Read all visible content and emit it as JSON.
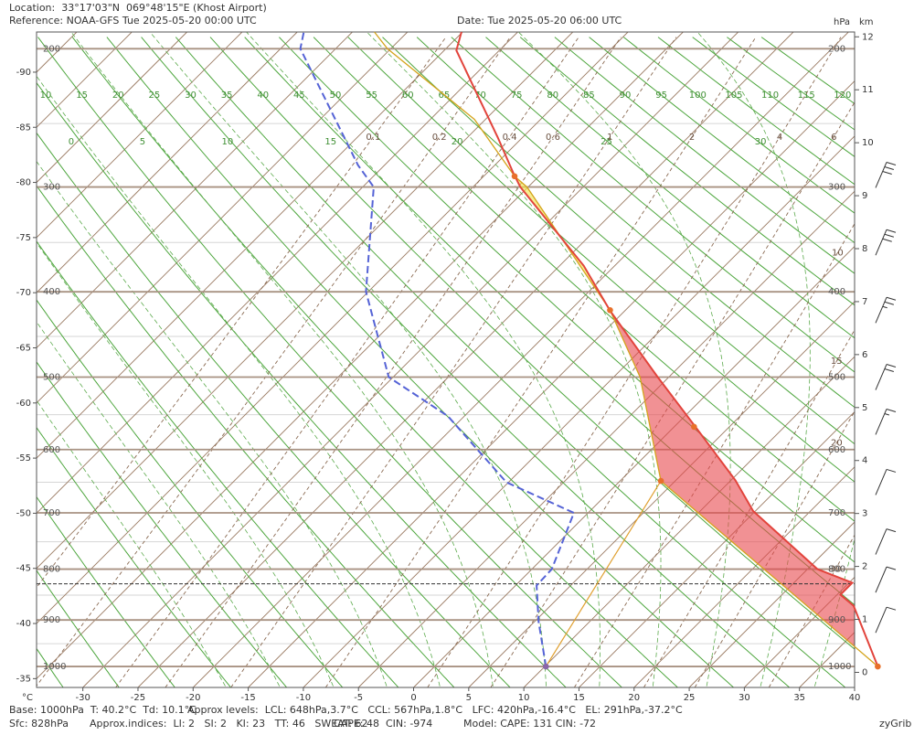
{
  "chart_data": {
    "type": "skewt",
    "location": "Location:  33°17'03\"N  069°48'15\"E (Khost Airport)",
    "reference": "Reference: NOAA-GFS Tue 2025-05-20 00:00 UTC",
    "date": "Date: Tue 2025-05-20 06:00 UTC",
    "pressure_unit": "hPa",
    "height_unit": "km",
    "xlabel": "°C",
    "footer": {
      "base": "Base: 1000hPa  T: 40.2°C  Td: 10.1°C",
      "levels": "Approx levels:  LCL: 648hPa,3.7°C   CCL: 567hPa,1.8°C   LFC: 420hPa,-16.4°C   EL: 291hPa,-37.2°C",
      "surface": "Sfc: 828hPa",
      "indices": "Approx.indices:  LI: 2   SI: 2   KI: 23   TT: 46   SWEAT: 62",
      "cape": "CAPE: 48  CIN: -974",
      "model": "Model: CAPE: 131 CIN: -72",
      "credit": "zyGrib"
    },
    "xlim": [
      -34.2,
      40
    ],
    "ylim": [
      1048,
      190
    ],
    "xticks": [
      -30,
      -25,
      -20,
      -15,
      -10,
      -5,
      0,
      5,
      10,
      15,
      20,
      25,
      30,
      35,
      40
    ],
    "left_ticks": [
      -35,
      -40,
      -45,
      -50,
      -55,
      -60,
      -65,
      -70,
      -75,
      -80,
      -85,
      -90
    ],
    "km_ticks": [
      0,
      1,
      2,
      3,
      4,
      5,
      6,
      7,
      8,
      9,
      10,
      11,
      12
    ],
    "pressure_levels": [
      1000,
      900,
      800,
      700,
      600,
      500,
      400,
      300,
      200
    ],
    "minor_isobars": [
      950,
      850,
      750,
      650,
      550,
      450,
      350,
      250
    ],
    "dry_adiabats": [
      -40,
      -35,
      -30,
      -25,
      -20,
      -15,
      -10,
      -5,
      0,
      5,
      10,
      15,
      20,
      25,
      30,
      35,
      40,
      45,
      50,
      55,
      60,
      65,
      70,
      75,
      80,
      85,
      90,
      95,
      100,
      105,
      110,
      115,
      120
    ],
    "moist_adiabats": [
      -20,
      -15,
      -10,
      -5,
      0,
      5,
      10,
      15,
      20,
      25,
      30,
      35
    ],
    "mixing_ratios": [
      0.1,
      0.2,
      0.4,
      0.6,
      1,
      2,
      4,
      6,
      10,
      15,
      20,
      30
    ],
    "surface_pressure": 828,
    "temperature": {
      "color": "#e2443c",
      "p": [
        1000,
        871,
        849,
        826,
        800,
        697,
        647,
        565,
        500,
        421,
        373,
        300,
        289,
        260,
        224,
        201,
        190
      ],
      "t": [
        40.2,
        32.5,
        30.3,
        30.3,
        25.9,
        14.8,
        10.4,
        1.7,
        -6,
        -16.3,
        -22.8,
        -35.7,
        -37.5,
        -42.3,
        -49.1,
        -53.9,
        -55.1
      ]
    },
    "dewpoint": {
      "color": "#5563d6",
      "p": [
        1000,
        904,
        831,
        800,
        700,
        650,
        552,
        500,
        400,
        300,
        282,
        200,
        190
      ],
      "t": [
        10.1,
        5.4,
        1.9,
        1.8,
        -1.3,
        -10.2,
        -21.5,
        -30.4,
        -40.2,
        -49,
        -52.4,
        -68.2,
        -69.4
      ]
    },
    "parcel": {
      "color": "#d4a41c",
      "p": [
        1000,
        648,
        500,
        420,
        300,
        291,
        247,
        200,
        190
      ],
      "t": [
        40.2,
        3.7,
        -7.6,
        -16.4,
        -35.1,
        -37.2,
        -46,
        -60.3,
        -63
      ]
    },
    "mixing_line": {
      "color": "#e0a030",
      "p": [
        1000,
        648
      ],
      "t": [
        10.1,
        3.7
      ]
    },
    "markers": [
      {
        "p": 1000,
        "t": 40.2,
        "color": "#e8702a"
      },
      {
        "p": 648,
        "t": 3.7,
        "color": "#e8702a"
      },
      {
        "p": 567,
        "t": 1.8,
        "color": "#e8702a"
      },
      {
        "p": 420,
        "t": -16.4,
        "color": "#e8702a"
      },
      {
        "p": 291,
        "t": -37.2,
        "color": "#e8702a"
      },
      {
        "p": 1000,
        "t": 10.1,
        "color": "#8a66a8"
      }
    ],
    "cin_color": "#e8484c",
    "cape_color": "#f2e24a",
    "wind": {
      "p": [
        290,
        350,
        420,
        500,
        560,
        650,
        750,
        820,
        900
      ],
      "kt": [
        30,
        30,
        25,
        20,
        15,
        10,
        10,
        10,
        10
      ]
    }
  }
}
